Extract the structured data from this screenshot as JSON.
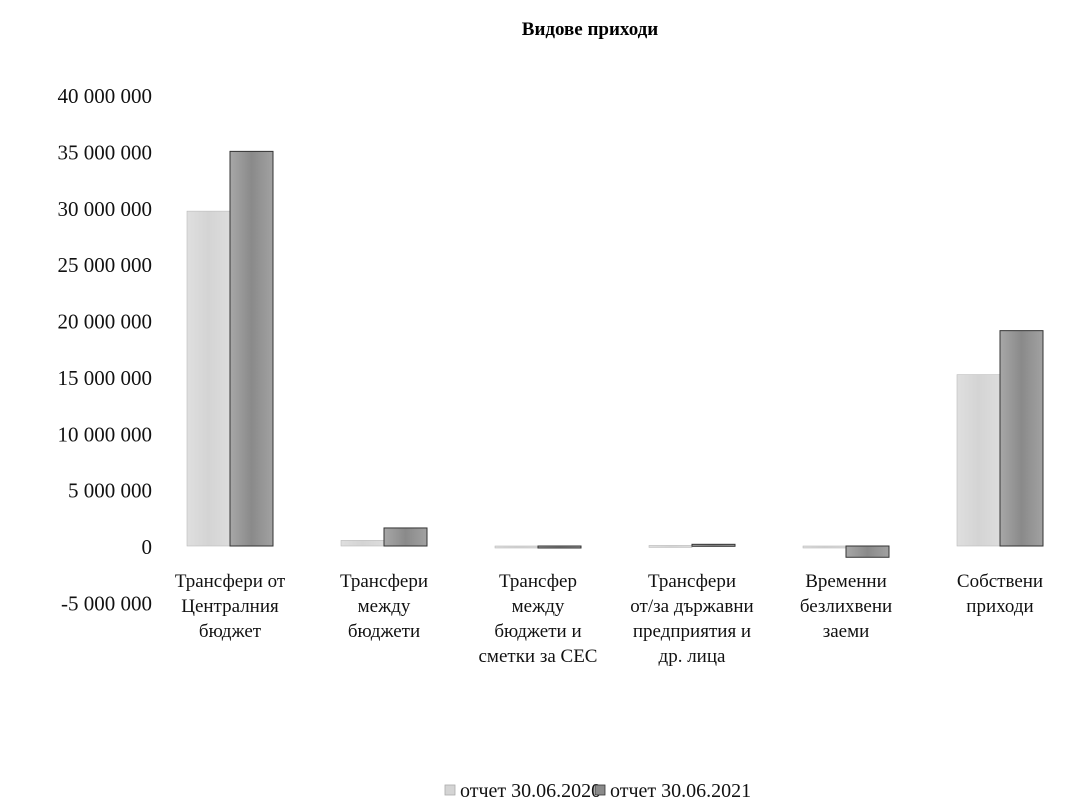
{
  "chart_data": {
    "type": "bar",
    "title": "Видове приходи",
    "xlabel": "",
    "ylabel": "",
    "ylim": [
      -5000000,
      40000000
    ],
    "yticks": [
      "40 000 000",
      "35 000 000",
      "30 000 000",
      "25 000 000",
      "20 000 000",
      "15 000 000",
      "10 000 000",
      "5 000 000",
      "0",
      "-5 000 000"
    ],
    "ytick_values": [
      40000000,
      35000000,
      30000000,
      25000000,
      20000000,
      15000000,
      10000000,
      5000000,
      0,
      -5000000
    ],
    "categories": [
      "Трансфери от Централния бюджет",
      "Трансфери между бюджети",
      "Трансфер между бюджети и сметки за СЕС",
      "Трансфери от/за държавни предприятия и др. лица",
      "Временни безлихвени заеми",
      "Собствени приходи"
    ],
    "category_lines": [
      [
        "Трансфери от",
        "Централния",
        "бюджет"
      ],
      [
        "Трансфери",
        "между",
        "бюджети"
      ],
      [
        "Трансфер",
        "между",
        "бюджети и",
        "сметки за СЕС"
      ],
      [
        "Трансфери",
        "от/за държавни",
        "предприятия и",
        "др. лица"
      ],
      [
        "Временни",
        "безлихвени",
        "заеми"
      ],
      [
        "Собствени",
        "приходи"
      ]
    ],
    "series": [
      {
        "name": "отчет 30.06.2020",
        "color": "#d4d4d4",
        "values": [
          29700000,
          500000,
          -50000,
          50000,
          -80000,
          15200000
        ]
      },
      {
        "name": "отчет 30.06.2021",
        "color": "#8a8a8a",
        "values": [
          35000000,
          1600000,
          -120000,
          150000,
          -1000000,
          19100000
        ]
      }
    ],
    "grid": false,
    "legend": "bottom"
  }
}
